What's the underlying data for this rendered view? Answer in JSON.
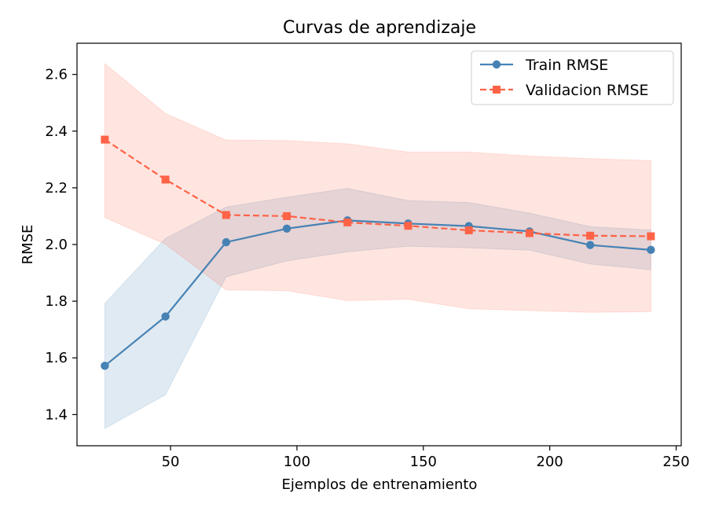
{
  "chart_data": {
    "type": "line",
    "title": "Curvas de aprendizaje",
    "xlabel": "Ejemplos de entrenamiento",
    "ylabel": "RMSE",
    "xlim": [
      13,
      252
    ],
    "ylim": [
      1.29,
      2.71
    ],
    "xticks": [
      50,
      100,
      150,
      200,
      250
    ],
    "yticks": [
      1.4,
      1.6,
      1.8,
      2.0,
      2.2,
      2.4,
      2.6
    ],
    "x": [
      24,
      48,
      72,
      96,
      120,
      144,
      168,
      192,
      216,
      240
    ],
    "legend_position": "top-right",
    "grid": false,
    "series": [
      {
        "name": "Train RMSE",
        "color": "#4682b4",
        "linestyle": "solid",
        "marker": "circle",
        "values": [
          1.572,
          1.746,
          2.008,
          2.056,
          2.085,
          2.074,
          2.065,
          2.046,
          1.998,
          1.981
        ],
        "band_upper": [
          1.792,
          2.022,
          2.132,
          2.167,
          2.198,
          2.155,
          2.148,
          2.111,
          2.063,
          2.051
        ],
        "band_lower": [
          1.351,
          1.47,
          1.886,
          1.942,
          1.974,
          1.994,
          1.988,
          1.98,
          1.931,
          1.911
        ]
      },
      {
        "name": "Validacion RMSE",
        "color": "#ff6347",
        "linestyle": "dashed",
        "marker": "square",
        "values": [
          2.37,
          2.229,
          2.104,
          2.1,
          2.078,
          2.066,
          2.05,
          2.04,
          2.031,
          2.029
        ],
        "band_upper": [
          2.638,
          2.462,
          2.368,
          2.367,
          2.355,
          2.326,
          2.326,
          2.312,
          2.303,
          2.296
        ],
        "band_lower": [
          2.095,
          2.001,
          1.84,
          1.837,
          1.802,
          1.807,
          1.773,
          1.767,
          1.761,
          1.763
        ]
      }
    ]
  }
}
